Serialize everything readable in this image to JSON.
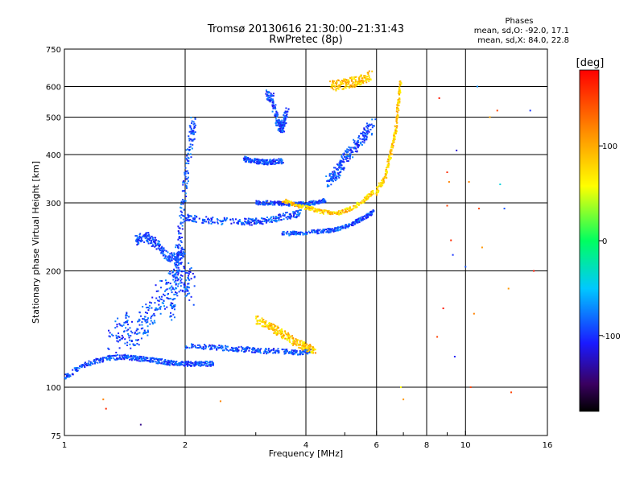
{
  "title": "Tromsø 20130616 21:30:00–21:31:43",
  "subtitle": "RwPretec (8p)",
  "phases": {
    "heading": "Phases",
    "line1": "mean, sd,O: -92.0, 17.1",
    "line2": "mean, sd,X:  84.0, 22.8"
  },
  "chart_data": {
    "type": "scatter",
    "xlabel": "Frequency [MHz]",
    "ylabel": "Stationary phase Virtual Height [km]",
    "xscale": "log",
    "yscale": "log",
    "xlim": [
      1,
      16
    ],
    "ylim": [
      75,
      750
    ],
    "x_ticks": [
      1,
      2,
      4,
      6,
      8,
      10,
      16
    ],
    "x_minor_ticks": [
      3,
      5,
      7,
      9
    ],
    "y_ticks": [
      75,
      100,
      200,
      300,
      400,
      500,
      600,
      750
    ],
    "x_gridlines": [
      2,
      4,
      6,
      8,
      10
    ],
    "y_gridlines": [
      100,
      200,
      300,
      400,
      500,
      600
    ],
    "grid": true,
    "colorbar": {
      "label": "[deg]",
      "range": [
        -180,
        180
      ],
      "ticks": [
        100,
        0,
        -100
      ]
    },
    "series": [
      {
        "mode": "O",
        "color_hint": "blue/purple",
        "traces": [
          {
            "x": [
              1.0,
              1.1,
              1.2,
              1.3,
              1.4,
              1.5,
              1.6,
              1.7,
              1.8,
              1.9,
              2.0,
              2.1,
              2.2,
              2.35
            ],
            "y": [
              106,
              113,
              117,
              119,
              120,
              119,
              118,
              117,
              116,
              115,
              115,
              115,
              115,
              115
            ],
            "spread": 0.015
          },
          {
            "x": [
              1.3,
              1.4,
              1.5,
              1.6,
              1.7,
              1.8,
              1.9,
              2.0,
              2.1
            ],
            "y": [
              128,
              145,
              135,
              150,
              165,
              180,
              190,
              195,
              175
            ],
            "spread": 0.09
          },
          {
            "x": [
              1.5,
              1.6,
              1.7,
              1.8,
              1.9,
              2.0
            ],
            "y": [
              240,
              245,
              235,
              220,
              215,
              225
            ],
            "spread": 0.03
          },
          {
            "x": [
              1.85,
              1.9,
              1.95,
              2.0,
              2.05,
              2.1
            ],
            "y": [
              150,
              200,
              260,
              330,
              420,
              480
            ],
            "spread": 0.05
          },
          {
            "x": [
              2.0,
              2.3,
              2.7,
              3.0,
              3.3,
              3.6,
              3.9
            ],
            "y": [
              275,
              270,
              268,
              268,
              272,
              278,
              282
            ],
            "spread": 0.02
          },
          {
            "x": [
              2.0,
              2.3,
              2.6,
              2.9,
              3.2,
              3.5,
              3.8,
              4.1
            ],
            "y": [
              128,
              127,
              126,
              125,
              124,
              124,
              123,
              124
            ],
            "spread": 0.015
          },
          {
            "x": [
              3.0,
              3.3,
              3.6,
              3.9,
              4.2,
              4.5
            ],
            "y": [
              300,
              300,
              298,
              298,
              300,
              305
            ],
            "spread": 0.012
          },
          {
            "x": [
              3.5,
              3.9,
              4.3,
              4.7,
              5.1,
              5.5,
              5.9
            ],
            "y": [
              250,
              250,
              253,
              255,
              262,
              272,
              285
            ],
            "spread": 0.012
          },
          {
            "x": [
              3.2,
              3.3,
              3.4,
              3.5,
              3.6
            ],
            "y": [
              570,
              560,
              480,
              470,
              520
            ],
            "spread": 0.03
          },
          {
            "x": [
              2.8,
              3.0,
              3.2,
              3.5
            ],
            "y": [
              390,
              385,
              382,
              385
            ],
            "spread": 0.015
          },
          {
            "x": [
              4.5,
              4.8,
              5.0,
              5.3,
              5.6,
              5.9
            ],
            "y": [
              340,
              360,
              390,
              420,
              450,
              480
            ],
            "spread": 0.04
          }
        ]
      },
      {
        "mode": "X",
        "color_hint": "yellow/green",
        "traces": [
          {
            "x": [
              3.0,
              3.2,
              3.4,
              3.6,
              3.8,
              4.0,
              4.2
            ],
            "y": [
              150,
              145,
              140,
              135,
              130,
              127,
              125
            ],
            "spread": 0.025
          },
          {
            "x": [
              3.5,
              3.8,
              4.1,
              4.4,
              4.8,
              5.2,
              5.6,
              5.9
            ],
            "y": [
              305,
              295,
              290,
              284,
              282,
              290,
              305,
              320
            ],
            "spread": 0.012
          },
          {
            "x": [
              6.0,
              6.3,
              6.5,
              6.7,
              6.8,
              6.9
            ],
            "y": [
              320,
              350,
              400,
              460,
              540,
              620
            ],
            "spread": 0.02
          },
          {
            "x": [
              4.6,
              5.0,
              5.4,
              5.8
            ],
            "y": [
              600,
              610,
              620,
              640
            ],
            "spread": 0.03
          }
        ]
      },
      {
        "mode": "scattered",
        "color_hint": "mixed",
        "points": [
          {
            "x": 1.25,
            "y": 93,
            "deg": 120
          },
          {
            "x": 1.27,
            "y": 88,
            "deg": 160
          },
          {
            "x": 1.55,
            "y": 80,
            "deg": -140
          },
          {
            "x": 2.45,
            "y": 92,
            "deg": 120
          },
          {
            "x": 7.0,
            "y": 93,
            "deg": 110
          },
          {
            "x": 6.9,
            "y": 100,
            "deg": 60
          },
          {
            "x": 8.5,
            "y": 135,
            "deg": 150
          },
          {
            "x": 8.8,
            "y": 160,
            "deg": 170
          },
          {
            "x": 9.0,
            "y": 295,
            "deg": 150
          },
          {
            "x": 9.0,
            "y": 360,
            "deg": 160
          },
          {
            "x": 9.1,
            "y": 340,
            "deg": 120
          },
          {
            "x": 9.2,
            "y": 240,
            "deg": 160
          },
          {
            "x": 9.3,
            "y": 220,
            "deg": -100
          },
          {
            "x": 9.4,
            "y": 120,
            "deg": -110
          },
          {
            "x": 10.0,
            "y": 205,
            "deg": -90
          },
          {
            "x": 10.2,
            "y": 340,
            "deg": 120
          },
          {
            "x": 10.3,
            "y": 100,
            "deg": 150
          },
          {
            "x": 10.5,
            "y": 155,
            "deg": 120
          },
          {
            "x": 10.8,
            "y": 290,
            "deg": 150
          },
          {
            "x": 11.0,
            "y": 230,
            "deg": 110
          },
          {
            "x": 11.5,
            "y": 500,
            "deg": 100
          },
          {
            "x": 12.0,
            "y": 520,
            "deg": 150
          },
          {
            "x": 12.5,
            "y": 290,
            "deg": -90
          },
          {
            "x": 12.8,
            "y": 180,
            "deg": 110
          },
          {
            "x": 13.0,
            "y": 97,
            "deg": 150
          },
          {
            "x": 14.5,
            "y": 520,
            "deg": -100
          },
          {
            "x": 14.8,
            "y": 200,
            "deg": 170
          },
          {
            "x": 10.7,
            "y": 600,
            "deg": -70
          },
          {
            "x": 8.6,
            "y": 560,
            "deg": 170
          },
          {
            "x": 9.5,
            "y": 410,
            "deg": -120
          },
          {
            "x": 12.2,
            "y": 335,
            "deg": -40
          }
        ]
      }
    ]
  }
}
